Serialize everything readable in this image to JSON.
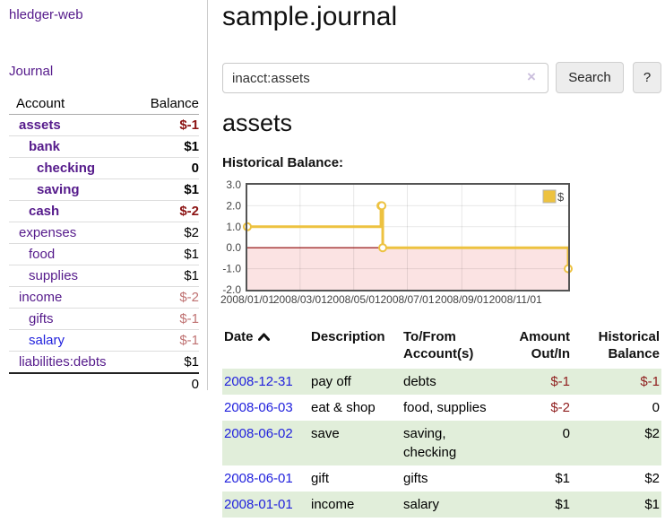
{
  "app": {
    "title": "hledger-web"
  },
  "colors": {
    "purple_link": "#551a8b",
    "blue_link": "#2222dd",
    "negative_strong": "#8b1212",
    "negative_soft": "#bf7171",
    "table_negative": "#8f1d1d",
    "row_stripe_green": "#e1eeda",
    "chart_series_gold": "#edc240",
    "chart_negative_fill": "#fbe3e3",
    "chart_zero_line": "#8b0000",
    "chart_border": "#545454"
  },
  "sidebar": {
    "journal_link": "Journal",
    "accounts": {
      "header": {
        "account": "Account",
        "balance": "Balance"
      },
      "rows": [
        {
          "name": "assets",
          "depth": 1,
          "bold": true,
          "balance": "$-1",
          "neg": "strong"
        },
        {
          "name": "bank",
          "depth": 2,
          "bold": true,
          "balance": "$1"
        },
        {
          "name": "checking",
          "depth": 3,
          "bold": true,
          "balance": "0"
        },
        {
          "name": "saving",
          "depth": 3,
          "bold": true,
          "balance": "$1"
        },
        {
          "name": "cash",
          "depth": 2,
          "bold": true,
          "balance": "$-2",
          "neg": "strong"
        },
        {
          "name": "expenses",
          "depth": 1,
          "bold": false,
          "balance": "$2"
        },
        {
          "name": "food",
          "depth": 2,
          "bold": false,
          "balance": "$1"
        },
        {
          "name": "supplies",
          "depth": 2,
          "bold": false,
          "balance": "$1"
        },
        {
          "name": "income",
          "depth": 1,
          "bold": false,
          "balance": "$-2",
          "neg": "soft"
        },
        {
          "name": "gifts",
          "depth": 2,
          "bold": false,
          "balance": "$-1",
          "neg": "soft"
        },
        {
          "name": "salary",
          "depth": 2,
          "bold": false,
          "balance": "$-1",
          "neg": "soft",
          "link_color": "blue"
        },
        {
          "name": "liabilities:debts",
          "depth": 1,
          "bold": false,
          "balance": "$1",
          "last": true
        }
      ],
      "total": "0"
    }
  },
  "main": {
    "title": "sample.journal",
    "search": {
      "value": "inacct:assets",
      "clear_icon": "×",
      "search_button": "Search",
      "help_button": "?"
    },
    "account_heading": "assets",
    "section_label": "Historical Balance:"
  },
  "chart_data": {
    "type": "line",
    "title": "Historical Balance:",
    "series": [
      {
        "name": "$",
        "color": "#edc240",
        "steps": true,
        "points": [
          [
            "2008-01-01",
            1
          ],
          [
            "2008-06-01",
            2
          ],
          [
            "2008-06-02",
            2
          ],
          [
            "2008-06-03",
            0
          ],
          [
            "2008-12-31",
            -1
          ]
        ]
      }
    ],
    "x_start": "2008-01-01",
    "x_end": "2008-12-31",
    "ylim": [
      -2,
      3
    ],
    "y_ticks": [
      "3.0",
      "2.0",
      "1.0",
      "0.0",
      "-1.0",
      "-2.0"
    ],
    "x_ticks": [
      {
        "date": "2008-01-01",
        "label": "2008/01/01"
      },
      {
        "date": "2008-03-01",
        "label": "2008/03/01"
      },
      {
        "date": "2008-05-01",
        "label": "2008/05/01"
      },
      {
        "date": "2008-07-01",
        "label": "2008/07/01"
      },
      {
        "date": "2008-09-01",
        "label": "2008/09/01"
      },
      {
        "date": "2008-11-01",
        "label": "2008/11/01"
      }
    ],
    "legend": {
      "label": "$",
      "position": "top-right"
    },
    "grid": true,
    "negative_fill": "#fbe3e3",
    "zero_line": "#8b0000"
  },
  "register": {
    "headers": {
      "date": "Date",
      "description": "Description",
      "tofrom": [
        "To/From",
        "Account(s)"
      ],
      "amount": [
        "Amount",
        "Out/In"
      ],
      "balance": [
        "Historical",
        "Balance"
      ]
    },
    "rows": [
      {
        "date": "2008-12-31",
        "description": "pay off",
        "accounts": "debts",
        "amount": "$-1",
        "amount_neg": true,
        "balance": "$-1",
        "balance_neg": true
      },
      {
        "date": "2008-06-03",
        "description": "eat & shop",
        "accounts": "food, supplies",
        "amount": "$-2",
        "amount_neg": true,
        "balance": "0",
        "balance_neg": false
      },
      {
        "date": "2008-06-02",
        "description": "save",
        "accounts": "saving, checking",
        "amount": "0",
        "amount_neg": false,
        "balance": "$2",
        "balance_neg": false
      },
      {
        "date": "2008-06-01",
        "description": "gift",
        "accounts": "gifts",
        "amount": "$1",
        "amount_neg": false,
        "balance": "$2",
        "balance_neg": false
      },
      {
        "date": "2008-01-01",
        "description": "income",
        "accounts": "salary",
        "amount": "$1",
        "amount_neg": false,
        "balance": "$1",
        "balance_neg": false
      }
    ]
  }
}
